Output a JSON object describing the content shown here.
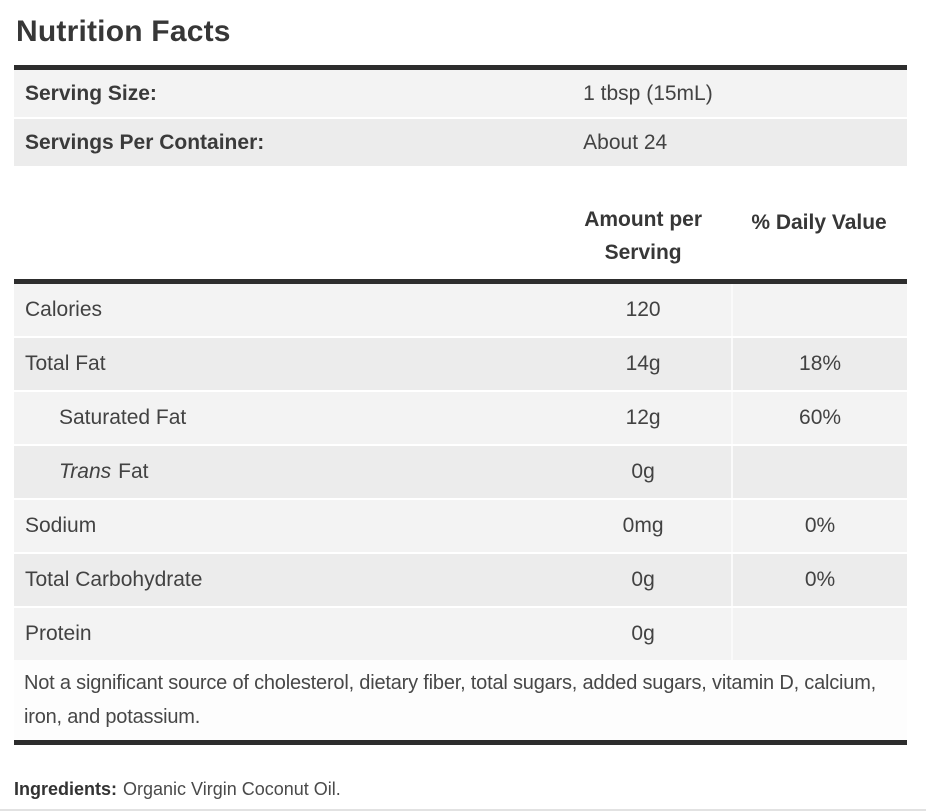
{
  "page": {
    "title": "Nutrition Facts"
  },
  "serving": {
    "rows": [
      {
        "label": "Serving Size:",
        "value": "1 tbsp (15mL)"
      },
      {
        "label": "Servings Per Container:",
        "value": "About 24"
      }
    ]
  },
  "nutrition": {
    "headers": {
      "amount_line1": "Amount per",
      "amount_line2": "Serving",
      "daily_value": "% Daily Value"
    },
    "rows": [
      {
        "label": "Calories",
        "amount": "120",
        "daily_value": ""
      },
      {
        "label": "Total Fat",
        "amount": "14g",
        "daily_value": "18%"
      },
      {
        "label": "Saturated Fat",
        "amount": "12g",
        "daily_value": "60%"
      },
      {
        "label_italic": "Trans",
        "label": "Fat",
        "amount": "0g",
        "daily_value": ""
      },
      {
        "label": "Sodium",
        "amount": "0mg",
        "daily_value": "0%"
      },
      {
        "label": "Total Carbohydrate",
        "amount": "0g",
        "daily_value": "0%"
      },
      {
        "label": "Protein",
        "amount": "0g",
        "daily_value": ""
      }
    ]
  },
  "note": "Not a significant source of cholesterol, dietary fiber, total sugars, added sugars, vitamin D, calcium, iron, and potassium.",
  "ingredients": {
    "label": "Ingredients:",
    "value": "Organic Virgin Coconut Oil."
  },
  "colors": {
    "divider_bar": "#2d2d2d",
    "row_light": "#f3f3f3",
    "row_dark": "#ececec",
    "text": "#3f3f3f"
  }
}
